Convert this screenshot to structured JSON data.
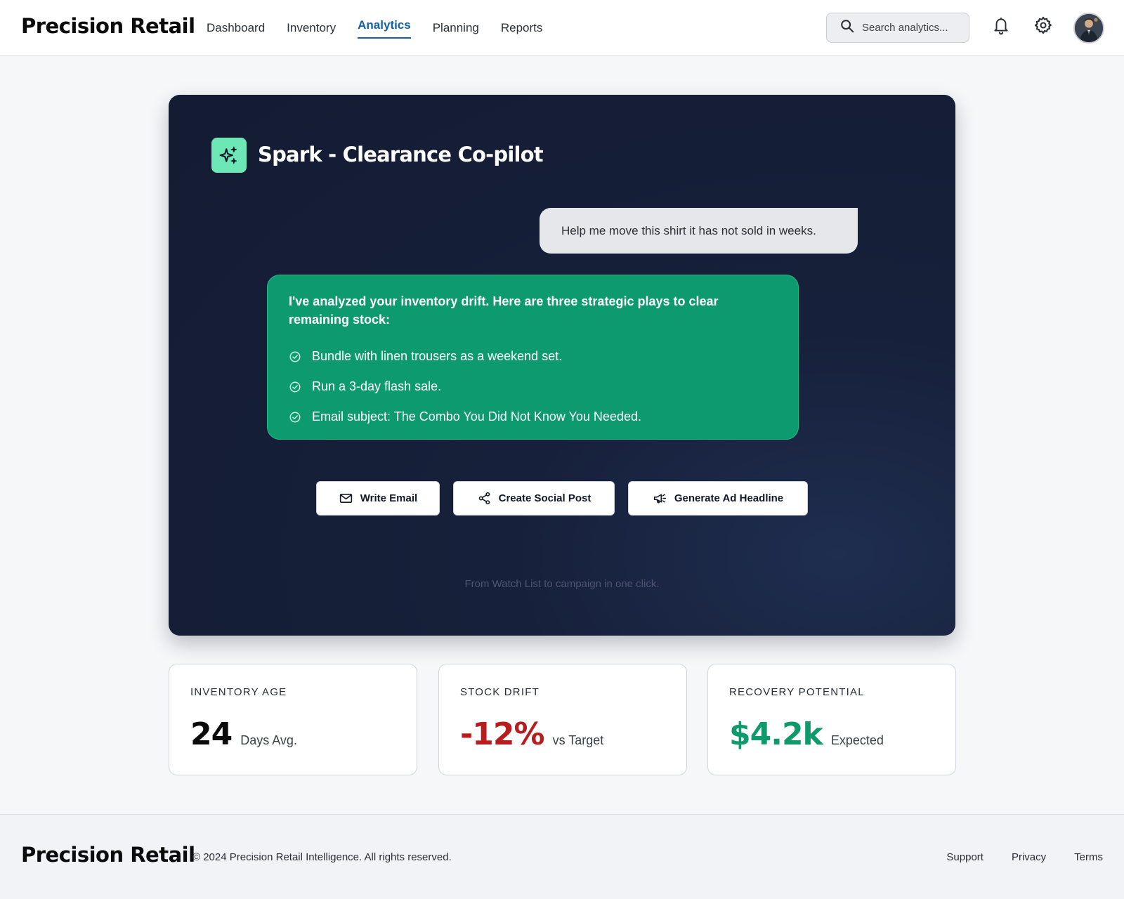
{
  "header": {
    "brand": "Precision Retail",
    "nav": [
      {
        "label": "Dashboard",
        "active": false
      },
      {
        "label": "Inventory",
        "active": false
      },
      {
        "label": "Analytics",
        "active": true
      },
      {
        "label": "Planning",
        "active": false
      },
      {
        "label": "Reports",
        "active": false
      }
    ],
    "search_placeholder": "Search analytics...",
    "icons": [
      "search-icon",
      "bell-icon",
      "gear-icon",
      "avatar"
    ]
  },
  "copilot": {
    "title": "Spark - Clearance Co-pilot",
    "badge_icon": "sparkles-icon",
    "user_message": "Help me move this shirt it has not sold in weeks.",
    "ai_intro": "I've analyzed your inventory drift. Here are three strategic plays to clear remaining stock:",
    "ai_plays": [
      "Bundle with linen trousers as a weekend set.",
      "Run a 3-day flash sale.",
      "Email subject: The Combo You Did Not Know You Needed."
    ],
    "actions": [
      {
        "label": "Write Email",
        "icon": "mail-icon"
      },
      {
        "label": "Create Social Post",
        "icon": "share-icon"
      },
      {
        "label": "Generate Ad Headline",
        "icon": "megaphone-icon"
      }
    ],
    "footnote": "From Watch List to campaign in one click."
  },
  "stats": [
    {
      "label": "INVENTORY AGE",
      "value": "24",
      "unit": "Days Avg.",
      "color": "#0b0b0b"
    },
    {
      "label": "STOCK DRIFT",
      "value": "-12%",
      "unit": "vs Target",
      "color": "#b91c1c"
    },
    {
      "label": "RECOVERY POTENTIAL",
      "value": "$4.2k",
      "unit": "Expected",
      "color": "#0f9a6c"
    }
  ],
  "footer": {
    "brand": "Precision Retail",
    "copyright": "© 2024 Precision Retail Intelligence. All rights reserved.",
    "links": [
      "Support",
      "Privacy",
      "Terms"
    ]
  },
  "colors": {
    "accent": "#175fa8",
    "hero_bg": "#141c33",
    "ai_bubble": "#0d9a6e",
    "badge": "#6ee7b7"
  }
}
